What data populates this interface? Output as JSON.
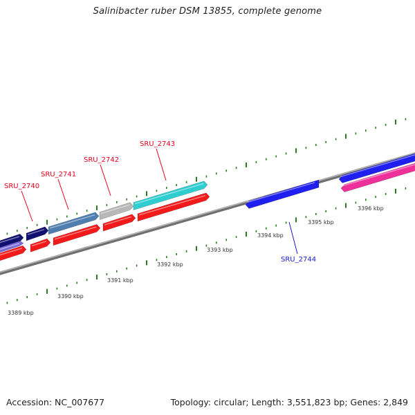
{
  "title": "Salinibacter ruber DSM 13855, complete genome",
  "footer": {
    "accession": "Accession: NC_007677",
    "summary": "Topology: circular; Length: 3,551,823 bp; Genes: 2,849"
  },
  "scale_labels": [
    "3389 kbp",
    "3390 kbp",
    "3391 kbp",
    "3392 kbp",
    "3393 kbp",
    "3394 kbp",
    "3395 kbp",
    "3396 kbp"
  ],
  "gene_labels": [
    {
      "id": "SRU_2740",
      "text": "SRU_2740",
      "color": "#e8001c"
    },
    {
      "id": "SRU_2741",
      "text": "SRU_2741",
      "color": "#e8001c"
    },
    {
      "id": "SRU_2742",
      "text": "SRU_2742",
      "color": "#e8001c"
    },
    {
      "id": "SRU_2743",
      "text": "SRU_2743",
      "color": "#e8001c"
    },
    {
      "id": "SRU_2744",
      "text": "SRU_2744",
      "color": "#1a1acc"
    }
  ],
  "colors": {
    "backbone": "#8a8a8a",
    "tick": "#2a7a1f",
    "red": "#f21a1a",
    "blue": "#1f1ff0",
    "navy": "#101070",
    "steel": "#4f7fb0",
    "grey": "#b8b8b8",
    "cyan": "#2ecdd0",
    "violet": "#7a6ad8",
    "magenta": "#f0309a",
    "scale_text": "#333333"
  }
}
